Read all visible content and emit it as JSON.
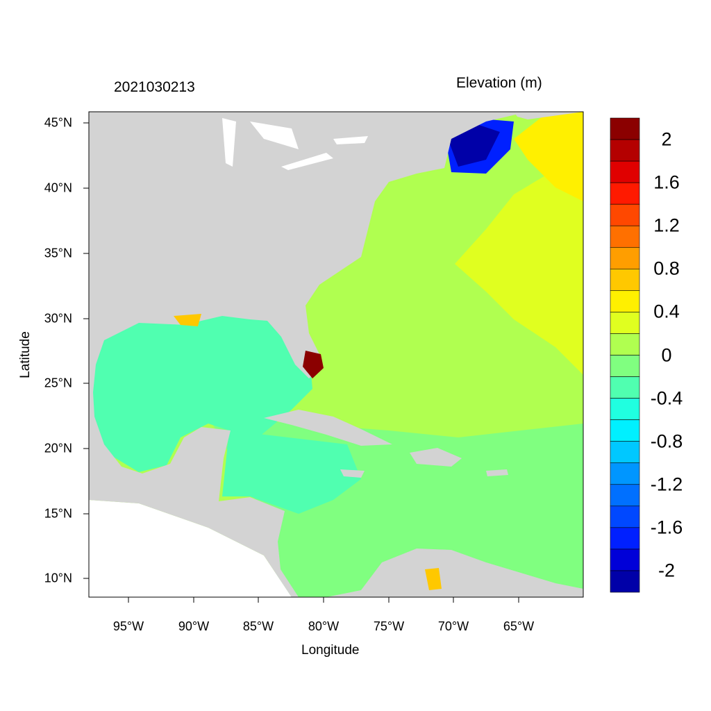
{
  "title_left": "2021030213",
  "title_right": "Elevation (m)",
  "xlabel": "Longitude",
  "ylabel": "Latitude",
  "lat_ticks": [
    "45°N",
    "40°N",
    "35°N",
    "30°N",
    "25°N",
    "20°N",
    "15°N",
    "10°N"
  ],
  "lon_ticks": [
    "95°W",
    "90°W",
    "85°W",
    "80°W",
    "75°W",
    "70°W",
    "65°W"
  ],
  "map_extent": {
    "lon": [
      -98,
      -60
    ],
    "lat": [
      8.6,
      45.8
    ]
  },
  "colorbar": {
    "labels": [
      "2",
      "1.6",
      "1.2",
      "0.8",
      "0.4",
      "0",
      "-0.4",
      "-0.8",
      "-1.2",
      "-1.6",
      "-2"
    ],
    "colors": [
      "#8b0000",
      "#b40000",
      "#e00000",
      "#ff1a00",
      "#ff4800",
      "#ff7000",
      "#ff9e00",
      "#ffc800",
      "#fff000",
      "#e0ff20",
      "#b0ff50",
      "#80ff80",
      "#50ffb0",
      "#20ffe0",
      "#00f0ff",
      "#00c8ff",
      "#0096ff",
      "#0070ff",
      "#0048ff",
      "#0020ff",
      "#0000d8",
      "#0000a8"
    ]
  },
  "colors": {
    "land": "#d3d3d3",
    "missing": "#ffffff"
  }
}
